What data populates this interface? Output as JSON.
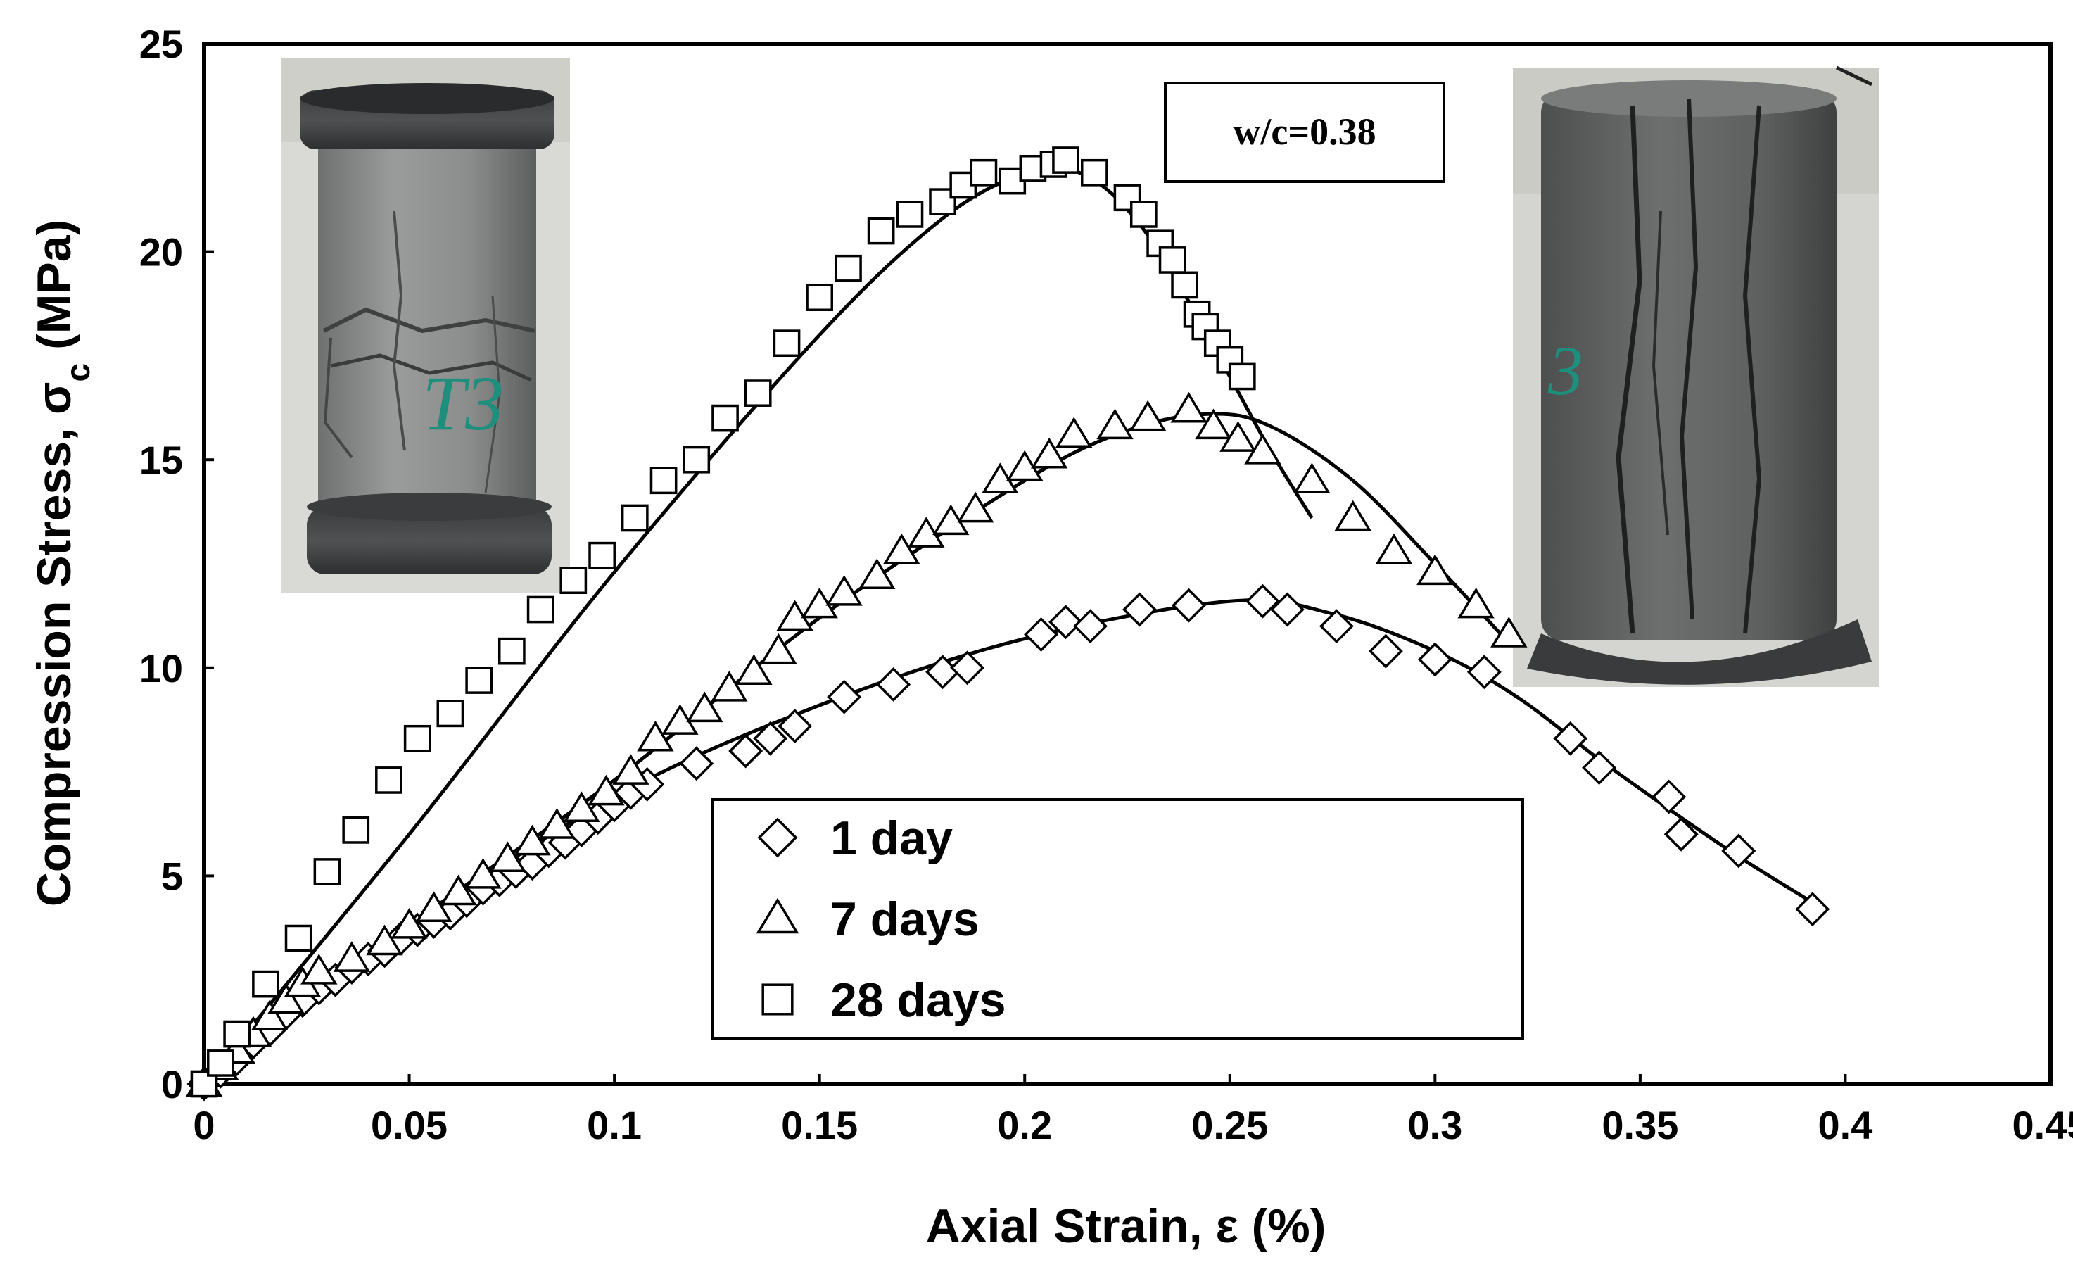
{
  "chart_data": {
    "type": "scatter",
    "title": "",
    "xlabel": "Axial Strain, ε (%)",
    "ylabel_main": "Compression Stress, σ",
    "ylabel_sub": "c",
    "ylabel_unit": " (MPa)",
    "xlim": [
      0,
      0.45
    ],
    "ylim": [
      0,
      25
    ],
    "x_ticks": [
      0,
      0.05,
      0.1,
      0.15,
      0.2,
      0.25,
      0.3,
      0.35,
      0.4,
      0.45
    ],
    "x_tick_labels": [
      "0",
      "0.05",
      "0.1",
      "0.15",
      "0.2",
      "0.25",
      "0.3",
      "0.35",
      "0.4",
      "0.45"
    ],
    "y_ticks": [
      0,
      5,
      10,
      15,
      20,
      25
    ],
    "y_tick_labels": [
      "0",
      "5",
      "10",
      "15",
      "20",
      "25"
    ],
    "grid": false,
    "legend_position": "bottom-center",
    "annotation": "w/c=0.38",
    "series": [
      {
        "name": "1 day",
        "marker": "diamond",
        "points": [
          [
            0,
            0
          ],
          [
            0.004,
            0.3
          ],
          [
            0.008,
            0.6
          ],
          [
            0.012,
            1.0
          ],
          [
            0.016,
            1.3
          ],
          [
            0.02,
            1.7
          ],
          [
            0.024,
            2.0
          ],
          [
            0.028,
            2.3
          ],
          [
            0.032,
            2.5
          ],
          [
            0.036,
            2.8
          ],
          [
            0.04,
            3.0
          ],
          [
            0.044,
            3.2
          ],
          [
            0.048,
            3.5
          ],
          [
            0.052,
            3.7
          ],
          [
            0.056,
            3.9
          ],
          [
            0.06,
            4.1
          ],
          [
            0.064,
            4.4
          ],
          [
            0.068,
            4.7
          ],
          [
            0.072,
            4.9
          ],
          [
            0.076,
            5.1
          ],
          [
            0.08,
            5.3
          ],
          [
            0.084,
            5.6
          ],
          [
            0.088,
            5.8
          ],
          [
            0.092,
            6.1
          ],
          [
            0.096,
            6.4
          ],
          [
            0.1,
            6.7
          ],
          [
            0.104,
            7.0
          ],
          [
            0.108,
            7.2
          ],
          [
            0.12,
            7.7
          ],
          [
            0.132,
            8.0
          ],
          [
            0.138,
            8.3
          ],
          [
            0.144,
            8.6
          ],
          [
            0.156,
            9.3
          ],
          [
            0.168,
            9.6
          ],
          [
            0.18,
            9.9
          ],
          [
            0.186,
            10.0
          ],
          [
            0.204,
            10.8
          ],
          [
            0.21,
            11.1
          ],
          [
            0.216,
            11.0
          ],
          [
            0.228,
            11.4
          ],
          [
            0.24,
            11.5
          ],
          [
            0.258,
            11.6
          ],
          [
            0.264,
            11.4
          ],
          [
            0.276,
            11.0
          ],
          [
            0.288,
            10.4
          ],
          [
            0.3,
            10.2
          ],
          [
            0.312,
            9.9
          ],
          [
            0.333,
            8.3
          ],
          [
            0.34,
            7.6
          ],
          [
            0.357,
            6.9
          ],
          [
            0.36,
            6.0
          ],
          [
            0.374,
            5.6
          ],
          [
            0.392,
            4.2
          ]
        ],
        "fit_curve": [
          [
            0,
            0
          ],
          [
            0.05,
            3.7
          ],
          [
            0.1,
            6.9
          ],
          [
            0.15,
            9.1
          ],
          [
            0.2,
            10.7
          ],
          [
            0.25,
            11.6
          ],
          [
            0.275,
            11.3
          ],
          [
            0.3,
            10.4
          ],
          [
            0.32,
            9.3
          ],
          [
            0.34,
            7.8
          ],
          [
            0.36,
            6.4
          ],
          [
            0.375,
            5.4
          ],
          [
            0.393,
            4.3
          ]
        ]
      },
      {
        "name": "7 days",
        "marker": "triangle",
        "points": [
          [
            0,
            0
          ],
          [
            0.004,
            0.4
          ],
          [
            0.008,
            0.8
          ],
          [
            0.012,
            1.2
          ],
          [
            0.016,
            1.6
          ],
          [
            0.02,
            2.0
          ],
          [
            0.024,
            2.4
          ],
          [
            0.028,
            2.7
          ],
          [
            0.036,
            3.0
          ],
          [
            0.044,
            3.4
          ],
          [
            0.05,
            3.8
          ],
          [
            0.056,
            4.2
          ],
          [
            0.062,
            4.6
          ],
          [
            0.068,
            5.0
          ],
          [
            0.074,
            5.4
          ],
          [
            0.08,
            5.8
          ],
          [
            0.086,
            6.2
          ],
          [
            0.092,
            6.6
          ],
          [
            0.098,
            7.0
          ],
          [
            0.104,
            7.5
          ],
          [
            0.11,
            8.3
          ],
          [
            0.116,
            8.7
          ],
          [
            0.122,
            9.0
          ],
          [
            0.128,
            9.5
          ],
          [
            0.134,
            9.9
          ],
          [
            0.14,
            10.4
          ],
          [
            0.144,
            11.2
          ],
          [
            0.15,
            11.5
          ],
          [
            0.156,
            11.8
          ],
          [
            0.164,
            12.2
          ],
          [
            0.17,
            12.8
          ],
          [
            0.176,
            13.2
          ],
          [
            0.182,
            13.5
          ],
          [
            0.188,
            13.8
          ],
          [
            0.194,
            14.5
          ],
          [
            0.2,
            14.8
          ],
          [
            0.206,
            15.1
          ],
          [
            0.212,
            15.6
          ],
          [
            0.222,
            15.8
          ],
          [
            0.23,
            16.0
          ],
          [
            0.24,
            16.2
          ],
          [
            0.246,
            15.8
          ],
          [
            0.252,
            15.5
          ],
          [
            0.258,
            15.2
          ],
          [
            0.27,
            14.5
          ],
          [
            0.28,
            13.6
          ],
          [
            0.29,
            12.8
          ],
          [
            0.3,
            12.3
          ],
          [
            0.31,
            11.5
          ],
          [
            0.318,
            10.8
          ]
        ],
        "fit_curve": [
          [
            0,
            0
          ],
          [
            0.05,
            3.8
          ],
          [
            0.1,
            7.3
          ],
          [
            0.15,
            11.2
          ],
          [
            0.2,
            14.5
          ],
          [
            0.225,
            15.7
          ],
          [
            0.245,
            16.1
          ],
          [
            0.26,
            15.8
          ],
          [
            0.28,
            14.5
          ],
          [
            0.3,
            12.5
          ],
          [
            0.318,
            10.6
          ]
        ]
      },
      {
        "name": "28 days",
        "marker": "square",
        "points": [
          [
            0,
            0
          ],
          [
            0.004,
            0.5
          ],
          [
            0.008,
            1.2
          ],
          [
            0.015,
            2.4
          ],
          [
            0.023,
            3.5
          ],
          [
            0.03,
            5.1
          ],
          [
            0.037,
            6.1
          ],
          [
            0.045,
            7.3
          ],
          [
            0.052,
            8.3
          ],
          [
            0.06,
            8.9
          ],
          [
            0.067,
            9.7
          ],
          [
            0.075,
            10.4
          ],
          [
            0.082,
            11.4
          ],
          [
            0.09,
            12.1
          ],
          [
            0.097,
            12.7
          ],
          [
            0.105,
            13.6
          ],
          [
            0.112,
            14.5
          ],
          [
            0.12,
            15.0
          ],
          [
            0.127,
            16.0
          ],
          [
            0.135,
            16.6
          ],
          [
            0.142,
            17.8
          ],
          [
            0.15,
            18.9
          ],
          [
            0.157,
            19.6
          ],
          [
            0.165,
            20.5
          ],
          [
            0.172,
            20.9
          ],
          [
            0.18,
            21.2
          ],
          [
            0.185,
            21.6
          ],
          [
            0.19,
            21.9
          ],
          [
            0.197,
            21.7
          ],
          [
            0.202,
            22.0
          ],
          [
            0.207,
            22.1
          ],
          [
            0.21,
            22.2
          ],
          [
            0.217,
            21.9
          ],
          [
            0.225,
            21.3
          ],
          [
            0.229,
            20.9
          ],
          [
            0.233,
            20.2
          ],
          [
            0.236,
            19.8
          ],
          [
            0.239,
            19.2
          ],
          [
            0.242,
            18.5
          ],
          [
            0.244,
            18.2
          ],
          [
            0.247,
            17.8
          ],
          [
            0.25,
            17.4
          ],
          [
            0.253,
            17.0
          ]
        ],
        "fit_curve": [
          [
            0,
            0
          ],
          [
            0.05,
            6.0
          ],
          [
            0.1,
            12.3
          ],
          [
            0.15,
            18.0
          ],
          [
            0.18,
            20.8
          ],
          [
            0.2,
            21.9
          ],
          [
            0.21,
            22.0
          ],
          [
            0.22,
            21.5
          ],
          [
            0.23,
            20.4
          ],
          [
            0.24,
            18.8
          ],
          [
            0.25,
            17.0
          ],
          [
            0.26,
            15.2
          ],
          [
            0.27,
            13.6
          ]
        ]
      }
    ]
  },
  "photos": {
    "left": {
      "label": "specimen-photo",
      "marking": "T3"
    },
    "right": {
      "label": "specimen-photo",
      "marking": "3"
    }
  }
}
